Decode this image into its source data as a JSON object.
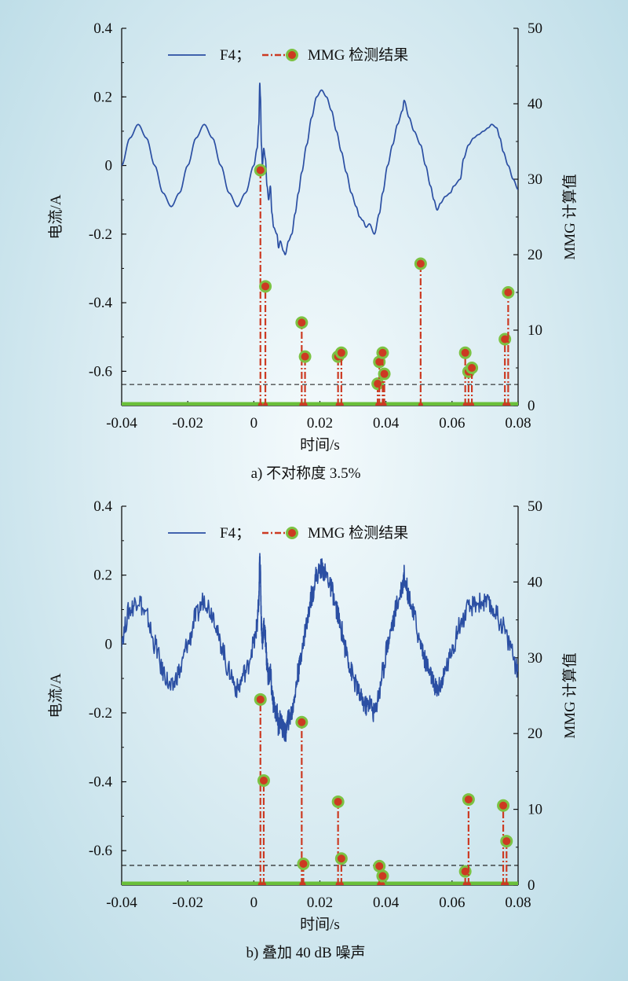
{
  "chart_data": [
    {
      "type": "line",
      "caption": "a) 不对称度 3.5%",
      "xlabel": "时间/s",
      "ylabel_left": "电流/A",
      "ylabel_right": "MMG 计算值",
      "xlim": [
        -0.04,
        0.08
      ],
      "ylim_left": [
        -0.7,
        0.4
      ],
      "ylim_right": [
        0,
        50
      ],
      "x_ticks": [
        "-0.04",
        "-0.02",
        "0",
        "0.02",
        "0.04",
        "0.06",
        "0.08"
      ],
      "y_left_ticks": [
        "0.4",
        "0.2",
        "0",
        "-0.2",
        "-0.4",
        "-0.6"
      ],
      "y_right_ticks": [
        "50",
        "40",
        "30",
        "20",
        "10",
        "0"
      ],
      "legend": {
        "position": "top",
        "line_label": "F4；",
        "stem_label": "MMG 检测结果"
      },
      "threshold": 2.8,
      "colors": {
        "current": "#2b4fa3",
        "stem": "#cc3a22",
        "marker": "#7cc243",
        "baseline": "#6abf3a"
      },
      "noise": 0,
      "current": [
        [
          -0.04,
          0.0
        ],
        [
          -0.0375,
          0.08
        ],
        [
          -0.035,
          0.12
        ],
        [
          -0.0325,
          0.08
        ],
        [
          -0.03,
          0.0
        ],
        [
          -0.0275,
          -0.08
        ],
        [
          -0.025,
          -0.12
        ],
        [
          -0.0225,
          -0.08
        ],
        [
          -0.02,
          0.0
        ],
        [
          -0.0175,
          0.08
        ],
        [
          -0.015,
          0.12
        ],
        [
          -0.0125,
          0.08
        ],
        [
          -0.01,
          0.0
        ],
        [
          -0.0075,
          -0.08
        ],
        [
          -0.005,
          -0.12
        ],
        [
          -0.0025,
          -0.08
        ],
        [
          0.0,
          0.0
        ],
        [
          0.001,
          0.05
        ],
        [
          0.0015,
          0.12
        ],
        [
          0.0018,
          0.24
        ],
        [
          0.002,
          0.2
        ],
        [
          0.0023,
          0.06
        ],
        [
          0.0026,
          0.0
        ],
        [
          0.003,
          0.05
        ],
        [
          0.0035,
          0.02
        ],
        [
          0.004,
          -0.06
        ],
        [
          0.0045,
          -0.1
        ],
        [
          0.005,
          -0.06
        ],
        [
          0.0055,
          -0.14
        ],
        [
          0.006,
          -0.18
        ],
        [
          0.007,
          -0.2
        ],
        [
          0.0075,
          -0.24
        ],
        [
          0.008,
          -0.22
        ],
        [
          0.009,
          -0.25
        ],
        [
          0.0095,
          -0.26
        ],
        [
          0.0105,
          -0.22
        ],
        [
          0.0115,
          -0.2
        ],
        [
          0.0125,
          -0.14
        ],
        [
          0.0135,
          -0.08
        ],
        [
          0.0145,
          -0.02
        ],
        [
          0.016,
          0.06
        ],
        [
          0.0175,
          0.14
        ],
        [
          0.019,
          0.2
        ],
        [
          0.0205,
          0.22
        ],
        [
          0.022,
          0.2
        ],
        [
          0.0235,
          0.16
        ],
        [
          0.025,
          0.1
        ],
        [
          0.0265,
          0.04
        ],
        [
          0.028,
          -0.02
        ],
        [
          0.0295,
          -0.08
        ],
        [
          0.031,
          -0.12
        ],
        [
          0.032,
          -0.15
        ],
        [
          0.033,
          -0.16
        ],
        [
          0.034,
          -0.18
        ],
        [
          0.035,
          -0.17
        ],
        [
          0.0365,
          -0.2
        ],
        [
          0.038,
          -0.14
        ],
        [
          0.039,
          -0.08
        ],
        [
          0.0405,
          0.0
        ],
        [
          0.042,
          0.06
        ],
        [
          0.0435,
          0.12
        ],
        [
          0.045,
          0.16
        ],
        [
          0.0455,
          0.19
        ],
        [
          0.047,
          0.14
        ],
        [
          0.0485,
          0.1
        ],
        [
          0.0505,
          0.06
        ],
        [
          0.052,
          0.0
        ],
        [
          0.0535,
          -0.06
        ],
        [
          0.0545,
          -0.1
        ],
        [
          0.0555,
          -0.13
        ],
        [
          0.0565,
          -0.11
        ],
        [
          0.058,
          -0.09
        ],
        [
          0.0595,
          -0.08
        ],
        [
          0.0605,
          -0.06
        ],
        [
          0.0625,
          -0.04
        ],
        [
          0.0635,
          0.02
        ],
        [
          0.065,
          0.06
        ],
        [
          0.0665,
          0.08
        ],
        [
          0.068,
          0.09
        ],
        [
          0.0695,
          0.1
        ],
        [
          0.071,
          0.11
        ],
        [
          0.072,
          0.12
        ],
        [
          0.0735,
          0.11
        ],
        [
          0.0745,
          0.08
        ],
        [
          0.0755,
          0.04
        ],
        [
          0.077,
          0.0
        ],
        [
          0.0785,
          -0.04
        ],
        [
          0.08,
          -0.07
        ]
      ],
      "stems": [
        [
          0.002,
          31.2
        ],
        [
          0.0035,
          15.8
        ],
        [
          0.0145,
          11.0
        ],
        [
          0.0155,
          6.5
        ],
        [
          0.0255,
          6.5
        ],
        [
          0.0265,
          7.0
        ],
        [
          0.0375,
          2.9
        ],
        [
          0.038,
          5.8
        ],
        [
          0.039,
          7.0
        ],
        [
          0.0395,
          4.2
        ],
        [
          0.0505,
          18.8
        ],
        [
          0.064,
          7.0
        ],
        [
          0.065,
          4.5
        ],
        [
          0.066,
          5.0
        ],
        [
          0.076,
          8.8
        ],
        [
          0.077,
          15.0
        ]
      ]
    },
    {
      "type": "line",
      "caption": "b) 叠加 40 dB 噪声",
      "xlabel": "时间/s",
      "ylabel_left": "电流/A",
      "ylabel_right": "MMG 计算值",
      "xlim": [
        -0.04,
        0.08
      ],
      "ylim_left": [
        -0.7,
        0.4
      ],
      "ylim_right": [
        0,
        50
      ],
      "x_ticks": [
        "-0.04",
        "-0.02",
        "0",
        "0.02",
        "0.04",
        "0.06",
        "0.08"
      ],
      "y_left_ticks": [
        "0.4",
        "0.2",
        "0",
        "-0.2",
        "-0.4",
        "-0.6"
      ],
      "y_right_ticks": [
        "50",
        "40",
        "30",
        "20",
        "10",
        "0"
      ],
      "legend": {
        "position": "top",
        "line_label": "F4；",
        "stem_label": "MMG 检测结果"
      },
      "threshold": 2.6,
      "colors": {
        "current": "#2b4fa3",
        "stem": "#cc3a22",
        "marker": "#7cc243",
        "baseline": "#6abf3a"
      },
      "noise": 0.03,
      "current": [
        [
          -0.04,
          0.02
        ],
        [
          -0.0375,
          0.1
        ],
        [
          -0.035,
          0.13
        ],
        [
          -0.0325,
          0.08
        ],
        [
          -0.03,
          0.0
        ],
        [
          -0.0275,
          -0.08
        ],
        [
          -0.025,
          -0.13
        ],
        [
          -0.0225,
          -0.08
        ],
        [
          -0.02,
          0.0
        ],
        [
          -0.0175,
          0.08
        ],
        [
          -0.015,
          0.13
        ],
        [
          -0.0125,
          0.09
        ],
        [
          -0.01,
          0.0
        ],
        [
          -0.0075,
          -0.08
        ],
        [
          -0.005,
          -0.13
        ],
        [
          -0.0025,
          -0.08
        ],
        [
          0.0,
          0.0
        ],
        [
          0.001,
          0.05
        ],
        [
          0.0015,
          0.12
        ],
        [
          0.0018,
          0.24
        ],
        [
          0.002,
          0.2
        ],
        [
          0.0023,
          0.06
        ],
        [
          0.0026,
          0.0
        ],
        [
          0.003,
          0.05
        ],
        [
          0.0035,
          0.02
        ],
        [
          0.004,
          -0.06
        ],
        [
          0.0045,
          -0.1
        ],
        [
          0.005,
          -0.08
        ],
        [
          0.0055,
          -0.14
        ],
        [
          0.006,
          -0.18
        ],
        [
          0.007,
          -0.2
        ],
        [
          0.0075,
          -0.24
        ],
        [
          0.008,
          -0.22
        ],
        [
          0.009,
          -0.25
        ],
        [
          0.0095,
          -0.26
        ],
        [
          0.0105,
          -0.22
        ],
        [
          0.0115,
          -0.2
        ],
        [
          0.0125,
          -0.14
        ],
        [
          0.0135,
          -0.08
        ],
        [
          0.0145,
          -0.02
        ],
        [
          0.016,
          0.06
        ],
        [
          0.0175,
          0.14
        ],
        [
          0.019,
          0.2
        ],
        [
          0.0205,
          0.22
        ],
        [
          0.022,
          0.2
        ],
        [
          0.0235,
          0.16
        ],
        [
          0.025,
          0.1
        ],
        [
          0.0265,
          0.04
        ],
        [
          0.028,
          -0.02
        ],
        [
          0.0295,
          -0.08
        ],
        [
          0.031,
          -0.12
        ],
        [
          0.0325,
          -0.16
        ],
        [
          0.034,
          -0.18
        ],
        [
          0.035,
          -0.17
        ],
        [
          0.0365,
          -0.2
        ],
        [
          0.038,
          -0.14
        ],
        [
          0.039,
          -0.08
        ],
        [
          0.0405,
          0.0
        ],
        [
          0.042,
          0.06
        ],
        [
          0.0435,
          0.12
        ],
        [
          0.045,
          0.17
        ],
        [
          0.0455,
          0.2
        ],
        [
          0.047,
          0.14
        ],
        [
          0.0485,
          0.08
        ],
        [
          0.0505,
          0.0
        ],
        [
          0.052,
          -0.05
        ],
        [
          0.0535,
          -0.09
        ],
        [
          0.0545,
          -0.12
        ],
        [
          0.0555,
          -0.13
        ],
        [
          0.057,
          -0.11
        ],
        [
          0.0585,
          -0.06
        ],
        [
          0.0605,
          0.0
        ],
        [
          0.0625,
          0.06
        ],
        [
          0.065,
          0.1
        ],
        [
          0.0675,
          0.12
        ],
        [
          0.07,
          0.12
        ],
        [
          0.0725,
          0.1
        ],
        [
          0.075,
          0.06
        ],
        [
          0.0775,
          0.0
        ],
        [
          0.08,
          -0.08
        ]
      ],
      "stems": [
        [
          0.002,
          24.5
        ],
        [
          0.003,
          13.8
        ],
        [
          0.0145,
          21.5
        ],
        [
          0.015,
          2.8
        ],
        [
          0.0255,
          11.0
        ],
        [
          0.0265,
          3.5
        ],
        [
          0.038,
          2.5
        ],
        [
          0.039,
          1.2
        ],
        [
          0.064,
          1.8
        ],
        [
          0.065,
          11.3
        ],
        [
          0.0755,
          10.5
        ],
        [
          0.0765,
          5.8
        ]
      ]
    }
  ]
}
